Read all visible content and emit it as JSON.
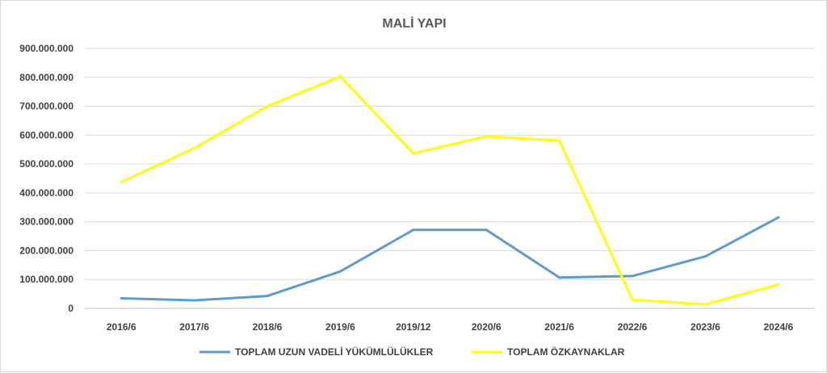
{
  "chart_data": {
    "type": "line",
    "title": "MALİ YAPI",
    "xlabel": "",
    "ylabel": "",
    "categories": [
      "2016/6",
      "2017/6",
      "2018/6",
      "2019/6",
      "2019/12",
      "2020/6",
      "2021/6",
      "2022/6",
      "2023/6",
      "2024/6"
    ],
    "ylim": [
      0,
      900000000
    ],
    "yticks": [
      0,
      100000000,
      200000000,
      300000000,
      400000000,
      500000000,
      600000000,
      700000000,
      800000000,
      900000000
    ],
    "ytick_labels": [
      "0",
      "100.000.000",
      "200.000.000",
      "300.000.000",
      "400.000.000",
      "500.000.000",
      "600.000.000",
      "700.000.000",
      "800.000.000",
      "900.000.000"
    ],
    "grid": true,
    "legend": "bottom",
    "series": [
      {
        "name": "TOPLAM UZUN VADELİ YÜKÜMLÜLÜKLER",
        "color": "#5b9bd5",
        "values": [
          35000000,
          28000000,
          43000000,
          128000000,
          272000000,
          272000000,
          107000000,
          112000000,
          180000000,
          315000000
        ]
      },
      {
        "name": "TOPLAM ÖZKAYNAKLAR",
        "color": "#ffff00",
        "values": [
          438000000,
          555000000,
          700000000,
          803000000,
          537000000,
          596000000,
          581000000,
          30000000,
          14000000,
          83000000
        ]
      }
    ]
  }
}
